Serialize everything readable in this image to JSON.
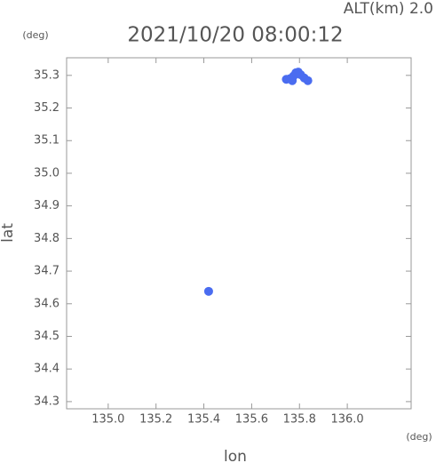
{
  "chart_data": {
    "type": "scatter",
    "title": "2021/10/20 08:00:12",
    "subtitle": "ALT(km) 2.0",
    "y_unit": "(deg)",
    "x_unit": "(deg)",
    "x_label": "lon",
    "y_label": "lat",
    "color": "#4a6cf0",
    "x": [
      135.745,
      135.76,
      135.775,
      135.785,
      135.795,
      135.805,
      135.82,
      135.835,
      135.77,
      135.42
    ],
    "values": [
      35.288,
      35.29,
      35.298,
      35.308,
      35.31,
      35.302,
      35.292,
      35.284,
      35.284,
      34.638
    ],
    "xlim": [
      134.826,
      136.267
    ],
    "ylim": [
      34.278,
      35.354
    ],
    "xticks": [
      {
        "value": 135.0,
        "label": "135.0"
      },
      135.2,
      135.4,
      135.6,
      135.8,
      {
        "value": 136.0,
        "label": "136.0"
      }
    ],
    "yticks": [
      34.3,
      34.4,
      34.5,
      34.6,
      34.7,
      34.8,
      34.9,
      {
        "value": 35.0,
        "label": "35.0"
      },
      35.1,
      35.2,
      35.3
    ]
  }
}
